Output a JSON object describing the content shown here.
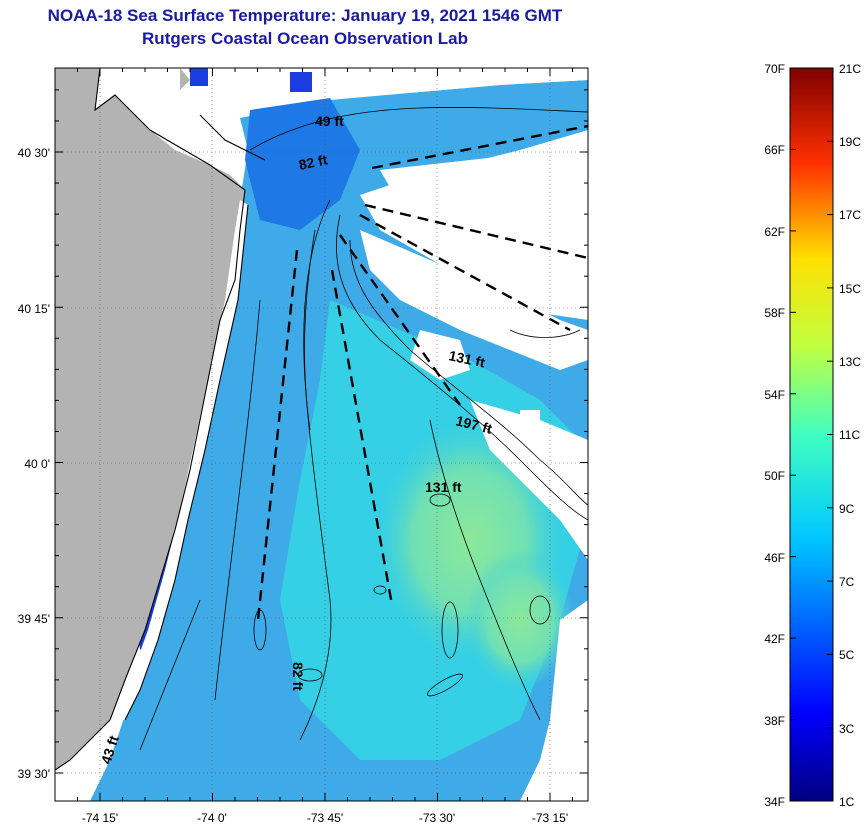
{
  "header": {
    "title": "NOAA-18 Sea Surface Temperature:  January 19, 2021 1546 GMT",
    "subtitle": "Rutgers Coastal Ocean Observation Lab"
  },
  "map": {
    "lat_labels": [
      "40 30'",
      "40 15'",
      "40 0'",
      "39 45'",
      "39 30'"
    ],
    "lon_labels": [
      "-74 15'",
      "-74 0'",
      "-73 45'",
      "-73 30'",
      "-73 15'"
    ],
    "depth_labels": [
      "49 ft",
      "82 ft",
      "131 ft",
      "197 ft",
      "131 ft",
      "82 ft",
      "43 ft"
    ],
    "colors": {
      "land": "#b3b3b3",
      "cloud": "#ffffff"
    }
  },
  "colorbar": {
    "fahrenheit_labels": [
      "70F",
      "66F",
      "62F",
      "58F",
      "54F",
      "50F",
      "46F",
      "42F",
      "38F",
      "34F"
    ],
    "celsius_labels": [
      "21C",
      "19C",
      "17C",
      "15C",
      "13C",
      "11C",
      "9C",
      "7C",
      "5C",
      "3C",
      "1C"
    ]
  }
}
